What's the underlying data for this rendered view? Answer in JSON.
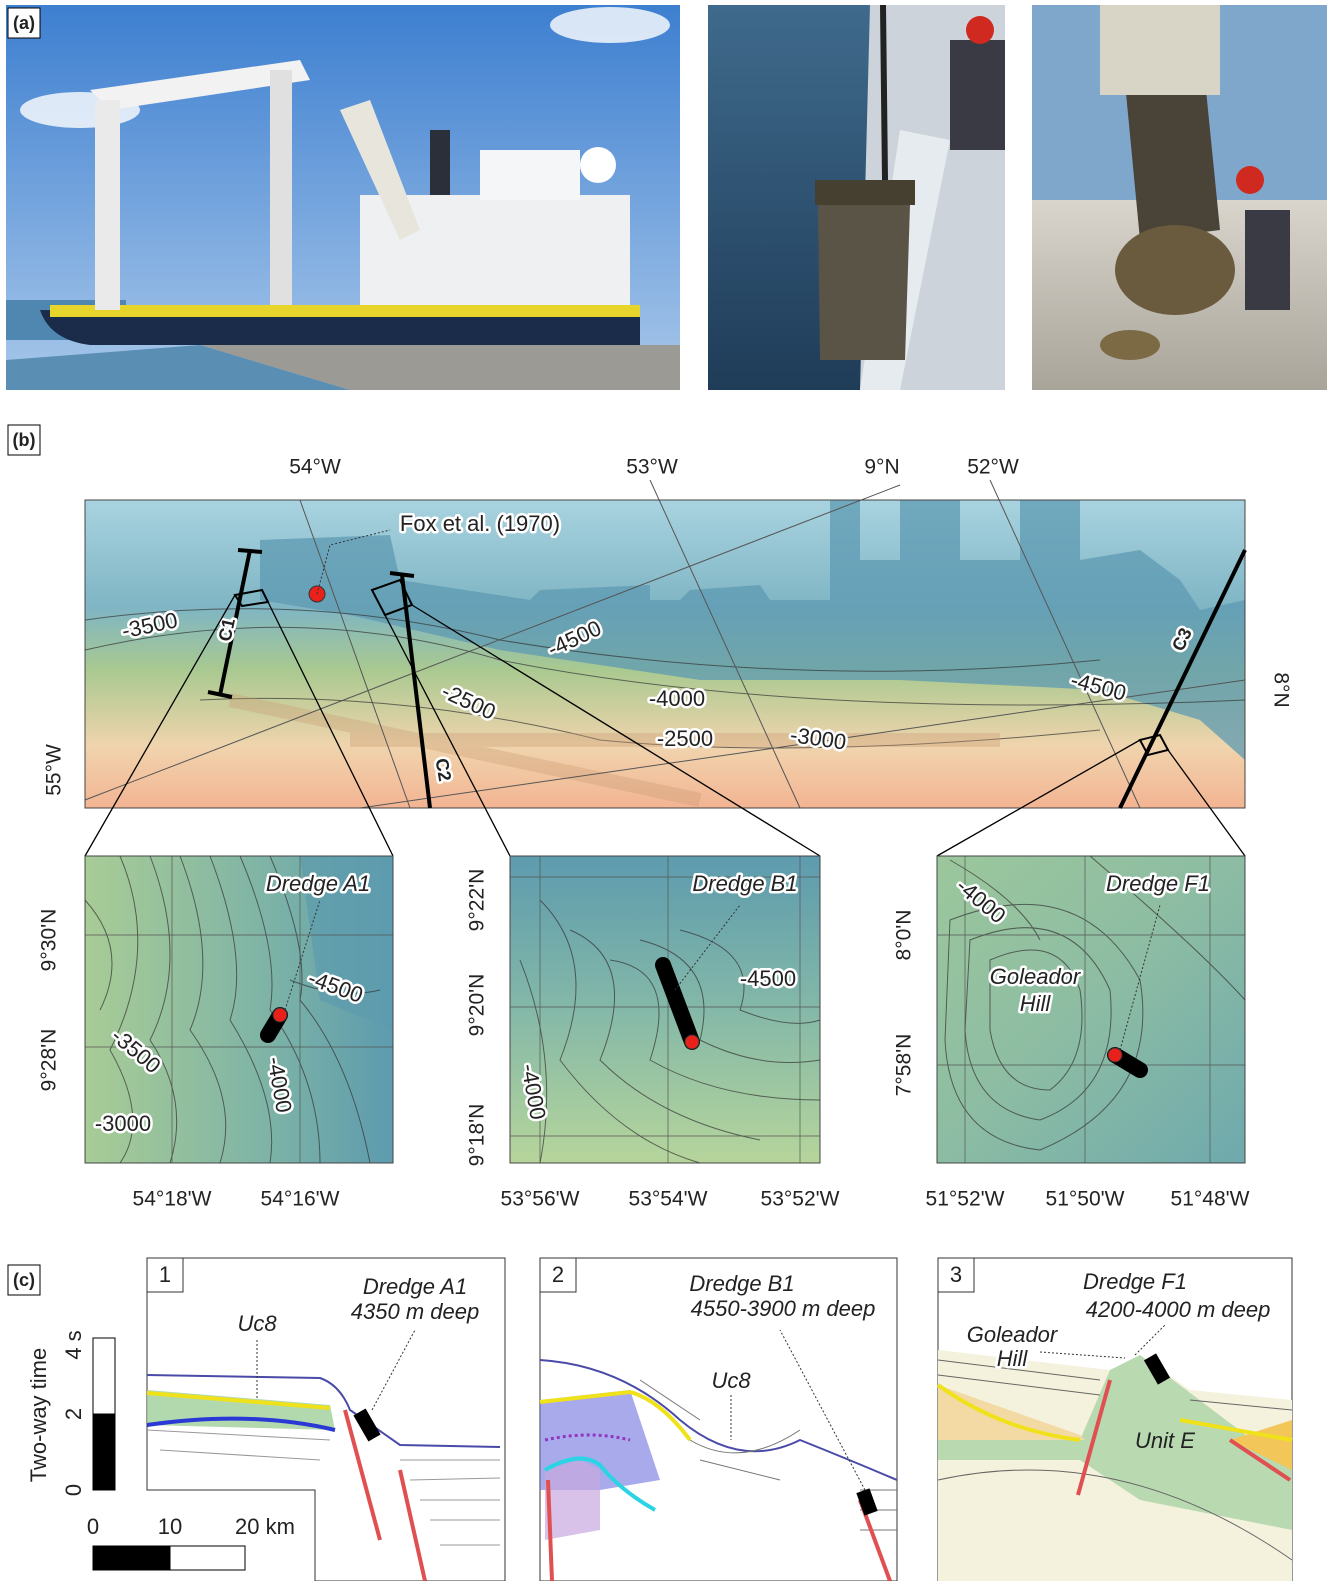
{
  "panel_a": {
    "label": "(a)"
  },
  "panel_b": {
    "label": "(b)",
    "map": {
      "top_axis": [
        "54°W",
        "53°W",
        "9°N",
        "52°W"
      ],
      "left_axis": [
        "55°W"
      ],
      "right_axis": [
        "8°N"
      ],
      "reference": "Fox et al. (1970)",
      "profiles": [
        "C1",
        "C2",
        "C3"
      ],
      "contours": [
        "-3500",
        "-4500",
        "-2500",
        "-4000",
        "-2500",
        "-3000",
        "-4500"
      ]
    },
    "insets": [
      {
        "dredge": "Dredge A1",
        "y_axis": [
          "9°30'N",
          "9°28'N"
        ],
        "x_axis": [
          "54°18'W",
          "54°16'W"
        ],
        "contours": [
          "-4500",
          "-3500",
          "-4000",
          "-3000"
        ]
      },
      {
        "dredge": "Dredge B1",
        "y_axis": [
          "9°22'N",
          "9°20'N",
          "9°18'N"
        ],
        "x_axis": [
          "53°56'W",
          "53°54'W",
          "53°52'W"
        ],
        "contours": [
          "-4500",
          "-4000"
        ]
      },
      {
        "dredge": "Dredge F1",
        "y_axis": [
          "8°0'N",
          "7°58'N"
        ],
        "x_axis": [
          "51°52'W",
          "51°50'W",
          "51°48'W"
        ],
        "contours": [
          "-4000"
        ],
        "feature": [
          "Goleador",
          "Hill"
        ]
      }
    ]
  },
  "panel_c": {
    "label": "(c)",
    "time_scale": {
      "title": "Two-way time",
      "ticks": [
        "4 s",
        "2",
        "0"
      ]
    },
    "distance_scale": {
      "ticks": [
        "0",
        "10",
        "20 km"
      ]
    },
    "profiles": [
      {
        "number": "1",
        "dredge": "Dredge A1",
        "depth": "4350 m deep",
        "unit": "Uc8"
      },
      {
        "number": "2",
        "dredge": "Dredge B1",
        "depth": "4550-3900 m deep",
        "unit": "Uc8"
      },
      {
        "number": "3",
        "dredge": "Dredge F1",
        "depth": "4200-4000 m deep",
        "feature": [
          "Goleador",
          "Hill"
        ],
        "unit": "Unit E"
      }
    ]
  }
}
